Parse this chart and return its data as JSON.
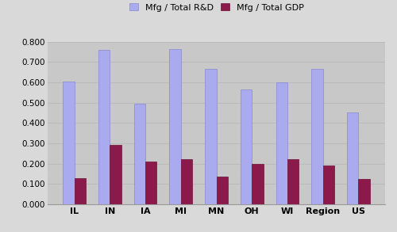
{
  "categories": [
    "IL",
    "IN",
    "IA",
    "MI",
    "MN",
    "OH",
    "WI",
    "Region",
    "US"
  ],
  "rd_values": [
    0.605,
    0.76,
    0.495,
    0.765,
    0.665,
    0.565,
    0.6,
    0.665,
    0.45
  ],
  "gdp_values": [
    0.13,
    0.29,
    0.21,
    0.22,
    0.135,
    0.2,
    0.22,
    0.19,
    0.125
  ],
  "rd_color": "#aaaaee",
  "gdp_color": "#8b1a4a",
  "fig_bg_color": "#d9d9d9",
  "plot_bg_color": "#c8c8c8",
  "legend_rd": "Mfg / Total R&D",
  "legend_gdp": "Mfg / Total GDP",
  "ylim": [
    0.0,
    0.8
  ],
  "yticks": [
    0.0,
    0.1,
    0.2,
    0.3,
    0.4,
    0.5,
    0.6,
    0.7,
    0.8
  ],
  "bar_width": 0.32,
  "figsize": [
    5.0,
    2.93
  ],
  "dpi": 100,
  "grid_color": "#bbbbbb",
  "tick_fontsize": 7.5,
  "legend_fontsize": 8
}
